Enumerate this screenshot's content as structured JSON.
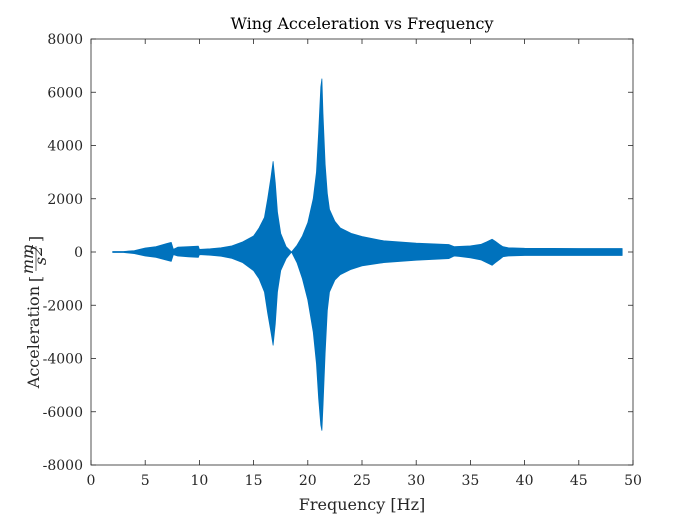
{
  "chart_data": {
    "type": "area",
    "title": "Wing Acceleration vs Frequency",
    "xlabel": "Frequency [Hz]",
    "ylabel_prefix": "Acceleration",
    "ylabel_num": "mm",
    "ylabel_den": "s",
    "ylabel_exp": "2",
    "xlim": [
      0,
      50
    ],
    "ylim": [
      -8000,
      8000
    ],
    "xticks": [
      0,
      5,
      10,
      15,
      20,
      25,
      30,
      35,
      40,
      45,
      50
    ],
    "yticks": [
      -8000,
      -6000,
      -4000,
      -2000,
      0,
      2000,
      4000,
      6000,
      8000
    ],
    "grid": false,
    "series": [
      {
        "color": "#0072BD",
        "x": [
          2.0,
          3.0,
          4.0,
          5.0,
          6.0,
          7.0,
          7.4,
          7.6,
          8.0,
          9.0,
          9.9,
          10.0,
          11.0,
          12.0,
          13.0,
          14.0,
          15.0,
          15.5,
          16.0,
          16.3,
          16.6,
          16.8,
          17.0,
          17.2,
          17.5,
          18.0,
          18.5,
          19.0,
          19.5,
          20.0,
          20.5,
          20.8,
          21.0,
          21.2,
          21.3,
          21.4,
          21.6,
          21.8,
          22.0,
          22.5,
          23.0,
          24.0,
          25.0,
          27.0,
          30.0,
          33.0,
          33.5,
          34.0,
          35.0,
          36.0,
          36.5,
          37.0,
          37.3,
          37.7,
          38.0,
          38.5,
          40.0,
          45.0,
          49.0
        ],
        "upper": [
          20,
          20,
          50,
          150,
          200,
          320,
          360,
          100,
          180,
          200,
          220,
          100,
          120,
          160,
          230,
          380,
          600,
          900,
          1300,
          2000,
          2800,
          3400,
          2600,
          1500,
          700,
          200,
          0,
          250,
          600,
          1100,
          2000,
          3000,
          4500,
          6200,
          6500,
          5200,
          3300,
          2200,
          1600,
          1150,
          900,
          700,
          580,
          420,
          330,
          280,
          200,
          210,
          230,
          290,
          380,
          480,
          400,
          280,
          200,
          160,
          140,
          130,
          130
        ],
        "lower": [
          -20,
          -20,
          -60,
          -150,
          -200,
          -310,
          -350,
          -100,
          -150,
          -180,
          -200,
          -100,
          -120,
          -160,
          -240,
          -400,
          -700,
          -1000,
          -1500,
          -2300,
          -3000,
          -3500,
          -2700,
          -1500,
          -700,
          -250,
          0,
          -400,
          -1000,
          -1800,
          -3000,
          -4200,
          -5500,
          -6500,
          -6700,
          -5800,
          -3800,
          -2200,
          -1500,
          -1050,
          -850,
          -650,
          -520,
          -400,
          -310,
          -250,
          -150,
          -170,
          -220,
          -300,
          -400,
          -500,
          -400,
          -280,
          -180,
          -150,
          -130,
          -130,
          -130
        ]
      }
    ]
  }
}
